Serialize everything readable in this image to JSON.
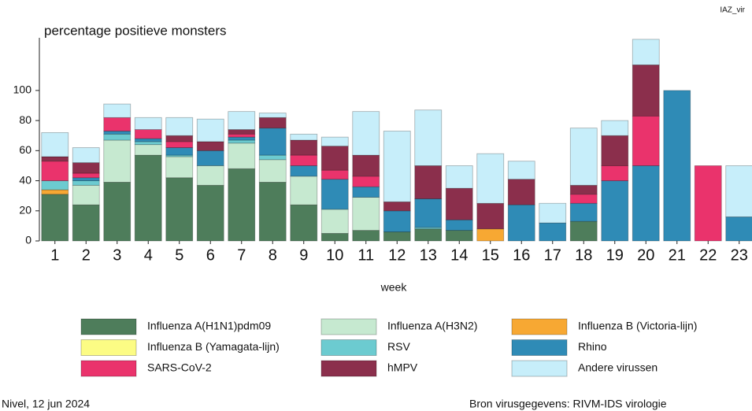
{
  "chart_data": {
    "type": "stacked_bar",
    "code": "IAZ_vir",
    "title": "percentage positieve monsters",
    "x_label": "week",
    "footer_left": "Nivel, 12 jun 2024",
    "footer_right": "Bron virusgegevens: RIVM-IDS virologie",
    "categories": [
      "1",
      "2",
      "3",
      "4",
      "5",
      "6",
      "7",
      "8",
      "9",
      "10",
      "11",
      "12",
      "13",
      "14",
      "15",
      "16",
      "17",
      "18",
      "19",
      "20",
      "21",
      "22",
      "23"
    ],
    "ylim": [
      0,
      135
    ],
    "yticks": [
      0,
      20,
      40,
      60,
      80,
      100
    ],
    "grid": false,
    "series": [
      {
        "name": "Influenza A(H1N1)pdm09",
        "color": "#4e7d5b",
        "values": [
          31,
          24,
          39,
          57,
          42,
          37,
          48,
          39,
          24,
          5,
          7,
          6,
          8,
          7,
          0,
          0,
          0,
          13,
          0,
          0,
          0,
          0,
          0
        ]
      },
      {
        "name": "Influenza A(H3N2)",
        "color": "#c6e9d0",
        "values": [
          0,
          13,
          28,
          7,
          14,
          13,
          17,
          15,
          19,
          16,
          22,
          0,
          0,
          0,
          0,
          0,
          0,
          0,
          0,
          0,
          0,
          0,
          0
        ]
      },
      {
        "name": "Influenza B (Victoria-lijn)",
        "color": "#f7a833",
        "values": [
          3,
          0,
          0,
          0,
          0,
          0,
          0,
          0,
          0,
          0,
          0,
          0,
          0,
          0,
          8,
          0,
          0,
          0,
          0,
          0,
          0,
          0,
          0
        ]
      },
      {
        "name": "Influenza B (Yamagata-lijn)",
        "color": "#fcfc84",
        "values": [
          0,
          0,
          0,
          0,
          0,
          0,
          0,
          0,
          0,
          0,
          0,
          0,
          0,
          0,
          0,
          0,
          0,
          0,
          0,
          0,
          0,
          0,
          0
        ]
      },
      {
        "name": "RSV",
        "color": "#6ccbd0",
        "values": [
          6,
          3,
          4,
          2,
          1,
          0,
          2,
          3,
          0,
          0,
          0,
          0,
          1,
          0,
          0,
          0,
          0,
          0,
          0,
          0,
          0,
          0,
          0
        ]
      },
      {
        "name": "Rhino",
        "color": "#2f8bb6",
        "values": [
          0,
          2,
          2,
          2,
          5,
          10,
          2,
          18,
          7,
          20,
          7,
          14,
          19,
          7,
          0,
          24,
          12,
          12,
          40,
          50,
          100,
          0,
          16
        ]
      },
      {
        "name": "SARS-CoV-2",
        "color": "#ea336c",
        "values": [
          13,
          3,
          9,
          6,
          4,
          0,
          2,
          0,
          7,
          6,
          7,
          0,
          0,
          0,
          0,
          0,
          0,
          6,
          10,
          33,
          0,
          50,
          0
        ]
      },
      {
        "name": "hMPV",
        "color": "#8b2f4c",
        "values": [
          3,
          7,
          0,
          0,
          4,
          6,
          3,
          7,
          10,
          16,
          14,
          6,
          22,
          21,
          17,
          17,
          0,
          6,
          20,
          34,
          0,
          0,
          0
        ]
      },
      {
        "name": "Andere virussen",
        "color": "#c7eefa",
        "values": [
          16,
          10,
          9,
          8,
          12,
          15,
          12,
          3,
          4,
          6,
          29,
          47,
          37,
          15,
          33,
          12,
          13,
          38,
          10,
          17,
          0,
          0,
          34
        ]
      }
    ]
  }
}
